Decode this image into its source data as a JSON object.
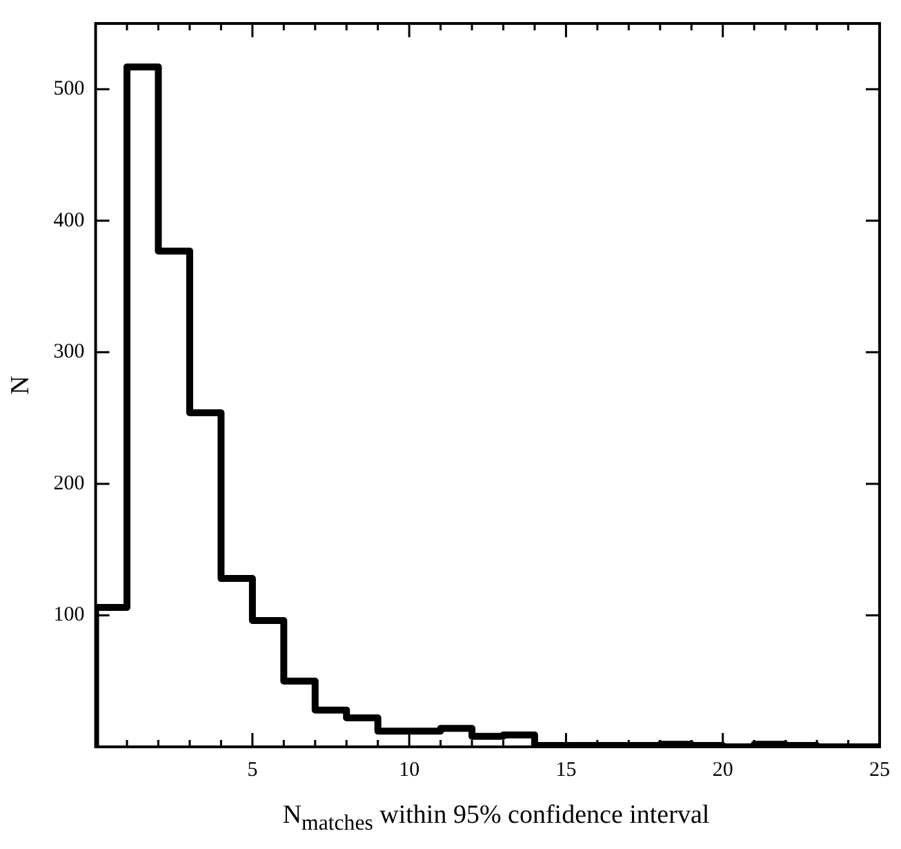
{
  "chart_data": {
    "type": "histogram",
    "xlabel": "N$_{matches}$ within 95% confidence interval",
    "ylabel": "N",
    "bins": [
      0,
      1,
      2,
      3,
      4,
      5,
      6,
      7,
      8,
      9,
      10,
      11,
      12,
      13,
      14,
      15,
      16,
      17,
      18,
      19,
      20,
      21,
      22,
      23,
      24,
      25
    ],
    "values": [
      106,
      517,
      377,
      254,
      128,
      96,
      50,
      28,
      22,
      12,
      12,
      14,
      8,
      9,
      1,
      1,
      1,
      1,
      2,
      1,
      0,
      2,
      1,
      0,
      0
    ],
    "color": "#000000",
    "xlim": [
      0,
      25
    ],
    "xticks": [
      {
        "value": 1,
        "label": null
      },
      {
        "value": 2,
        "label": null
      },
      {
        "value": 3,
        "label": null
      },
      {
        "value": 4,
        "label": null
      },
      5,
      {
        "value": 6,
        "label": null
      },
      {
        "value": 7,
        "label": null
      },
      {
        "value": 8,
        "label": null
      },
      {
        "value": 9,
        "label": null
      },
      10,
      {
        "value": 11,
        "label": null
      },
      {
        "value": 12,
        "label": null
      },
      {
        "value": 13,
        "label": null
      },
      {
        "value": 14,
        "label": null
      },
      15,
      {
        "value": 16,
        "label": null
      },
      {
        "value": 17,
        "label": null
      },
      {
        "value": 18,
        "label": null
      },
      {
        "value": 19,
        "label": null
      },
      20,
      {
        "value": 21,
        "label": null
      },
      {
        "value": 22,
        "label": null
      },
      {
        "value": 23,
        "label": null
      },
      {
        "value": 24,
        "label": null
      },
      25
    ],
    "ylim": [
      0,
      550
    ],
    "yticks": [
      100,
      200,
      300,
      400,
      500
    ],
    "grid": false,
    "legend": false
  }
}
